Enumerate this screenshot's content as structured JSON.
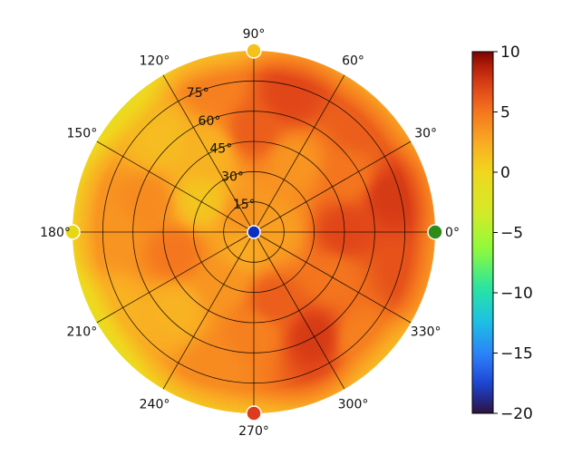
{
  "chart_data": {
    "type": "heatmap",
    "projection": "polar",
    "angle_ticks": [
      "0°",
      "30°",
      "60°",
      "90°",
      "120°",
      "150°",
      "180°",
      "210°",
      "240°",
      "270°",
      "300°",
      "330°"
    ],
    "radial_ticks": [
      "15°",
      "30°",
      "45°",
      "60°",
      "75°"
    ],
    "radial_tick_values": [
      15,
      30,
      45,
      60,
      75
    ],
    "radial_max": 90,
    "color_scale": {
      "min": -20,
      "max": 10,
      "ticks": [
        "10",
        "5",
        "0",
        "−5",
        "−10",
        "−15",
        "−20"
      ],
      "tick_values": [
        10,
        5,
        0,
        -5,
        -10,
        -15,
        -20
      ],
      "colormap": "turbo"
    },
    "grid": true,
    "markers": [
      {
        "angle": 0,
        "radius": 90,
        "color": "#2e8b17"
      },
      {
        "angle": 90,
        "radius": 90,
        "color": "#f4c21a"
      },
      {
        "angle": 180,
        "radius": 90,
        "color": "#e7d815"
      },
      {
        "angle": 270,
        "radius": 90,
        "color": "#e03a1e"
      },
      {
        "angle": 0,
        "radius": 0,
        "color": "#0b2fbf"
      }
    ],
    "field_samples": [
      {
        "angle": 0,
        "radius": 45,
        "value": 7
      },
      {
        "angle": 15,
        "radius": 70,
        "value": 7.5
      },
      {
        "angle": 30,
        "radius": 55,
        "value": 5
      },
      {
        "angle": 45,
        "radius": 75,
        "value": 6
      },
      {
        "angle": 60,
        "radius": 40,
        "value": 3.5
      },
      {
        "angle": 75,
        "radius": 70,
        "value": 7
      },
      {
        "angle": 90,
        "radius": 50,
        "value": 6
      },
      {
        "angle": 105,
        "radius": 75,
        "value": 4.5
      },
      {
        "angle": 120,
        "radius": 45,
        "value": 2
      },
      {
        "angle": 135,
        "radius": 65,
        "value": 1.5
      },
      {
        "angle": 150,
        "radius": 30,
        "value": 1
      },
      {
        "angle": 165,
        "radius": 55,
        "value": 4
      },
      {
        "angle": 180,
        "radius": 70,
        "value": 3.5
      },
      {
        "angle": 195,
        "radius": 40,
        "value": 5
      },
      {
        "angle": 210,
        "radius": 80,
        "value": 2
      },
      {
        "angle": 225,
        "radius": 55,
        "value": 2
      },
      {
        "angle": 240,
        "radius": 30,
        "value": 3.5
      },
      {
        "angle": 255,
        "radius": 70,
        "value": 4
      },
      {
        "angle": 270,
        "radius": 50,
        "value": 4.5
      },
      {
        "angle": 285,
        "radius": 35,
        "value": 6
      },
      {
        "angle": 300,
        "radius": 60,
        "value": 7.5
      },
      {
        "angle": 315,
        "radius": 75,
        "value": 4.5
      },
      {
        "angle": 330,
        "radius": 45,
        "value": 5
      },
      {
        "angle": 345,
        "radius": 80,
        "value": 6.5
      },
      {
        "angle": 0,
        "radius": 10,
        "value": 3
      },
      {
        "angle": 120,
        "radius": 10,
        "value": 3.5
      },
      {
        "angle": 240,
        "radius": 10,
        "value": 2.5
      }
    ]
  }
}
